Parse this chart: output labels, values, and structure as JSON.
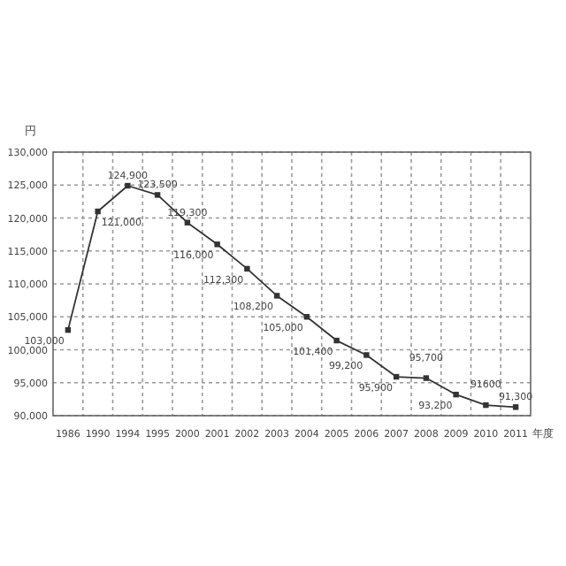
{
  "chart_data": {
    "type": "line",
    "ylabel": "円",
    "xlabel": "年度",
    "categories": [
      "1986",
      "1990",
      "1994",
      "1995",
      "2000",
      "2001",
      "2002",
      "2003",
      "2004",
      "2005",
      "2006",
      "2007",
      "2008",
      "2009",
      "2010",
      "2011"
    ],
    "series": [
      {
        "color": "#333333",
        "values": [
          103000,
          121000,
          124900,
          123500,
          119300,
          116000,
          112300,
          108200,
          105000,
          101400,
          99200,
          95900,
          95700,
          93200,
          91600,
          91300
        ],
        "value_labels": [
          "103,000",
          "121,000",
          "124,900",
          "123,500",
          "119,300",
          "116,000",
          "112,300",
          "108,200",
          "105,000",
          "101,400",
          "99,200",
          "95,900",
          "95,700",
          "93,200",
          "91600",
          "91,300"
        ]
      }
    ],
    "ylim": [
      90000,
      130000
    ],
    "yticks": [
      {
        "value": 90000,
        "label": "90,000"
      },
      {
        "value": 95000,
        "label": "95,000"
      },
      {
        "value": 100000,
        "label": "100,000"
      },
      {
        "value": 105000,
        "label": "105,000"
      },
      {
        "value": 110000,
        "label": "110,000"
      },
      {
        "value": 115000,
        "label": "115,000"
      },
      {
        "value": 120000,
        "label": "120,000"
      },
      {
        "value": 125000,
        "label": "125,000"
      },
      {
        "value": 130000,
        "label": "130,000"
      }
    ],
    "grid": true,
    "marker": "square",
    "line_style": "solid"
  }
}
